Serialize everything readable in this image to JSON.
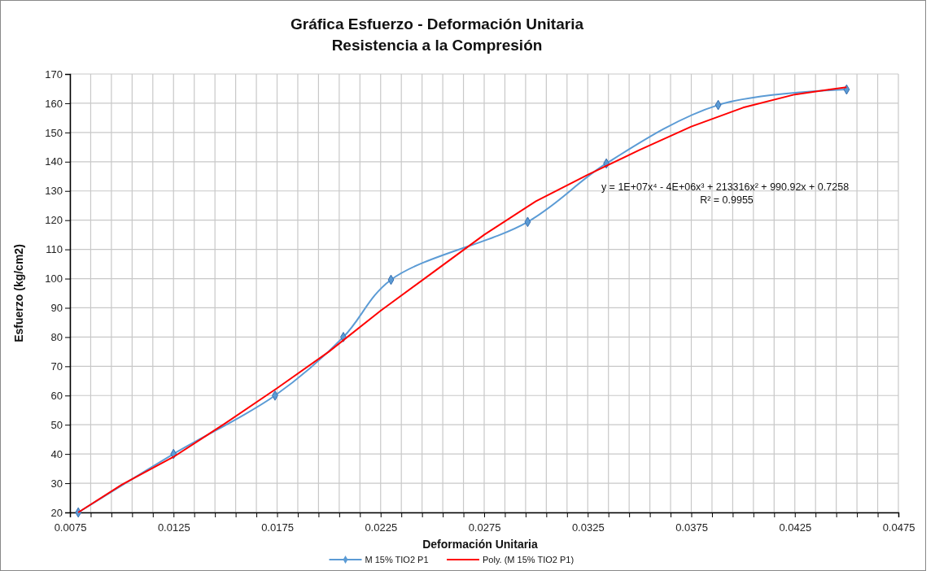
{
  "chart_data": {
    "type": "line",
    "title": "Gráfica Esfuerzo - Deformación Unitaria",
    "subtitle": "Resistencia a la Compresión",
    "xlabel": "Deformación Unitaria",
    "ylabel": "Esfuerzo (kg/cm2)",
    "annotations": [
      "y = 1E+07x⁴ - 4E+06x³ + 213316x² + 990.92x + 0.7258",
      "R² = 0.9955"
    ],
    "xlim": [
      0.0075,
      0.0475
    ],
    "ylim": [
      20,
      170
    ],
    "xticks": [
      {
        "value": 0.0075,
        "label": "0.0075"
      },
      {
        "value": 0.0085,
        "label": null
      },
      {
        "value": 0.0095,
        "label": null
      },
      {
        "value": 0.0105,
        "label": null
      },
      {
        "value": 0.0115,
        "label": null
      },
      {
        "value": 0.0125,
        "label": "0.0125"
      },
      {
        "value": 0.0135,
        "label": null
      },
      {
        "value": 0.0145,
        "label": null
      },
      {
        "value": 0.0155,
        "label": null
      },
      {
        "value": 0.0165,
        "label": null
      },
      {
        "value": 0.0175,
        "label": "0.0175"
      },
      {
        "value": 0.0185,
        "label": null
      },
      {
        "value": 0.0195,
        "label": null
      },
      {
        "value": 0.0205,
        "label": null
      },
      {
        "value": 0.0215,
        "label": null
      },
      {
        "value": 0.0225,
        "label": "0.0225"
      },
      {
        "value": 0.0235,
        "label": null
      },
      {
        "value": 0.0245,
        "label": null
      },
      {
        "value": 0.0255,
        "label": null
      },
      {
        "value": 0.0265,
        "label": null
      },
      {
        "value": 0.0275,
        "label": "0.0275"
      },
      {
        "value": 0.0285,
        "label": null
      },
      {
        "value": 0.0295,
        "label": null
      },
      {
        "value": 0.0305,
        "label": null
      },
      {
        "value": 0.0315,
        "label": null
      },
      {
        "value": 0.0325,
        "label": "0.0325"
      },
      {
        "value": 0.0335,
        "label": null
      },
      {
        "value": 0.0345,
        "label": null
      },
      {
        "value": 0.0355,
        "label": null
      },
      {
        "value": 0.0365,
        "label": null
      },
      {
        "value": 0.0375,
        "label": "0.0375"
      },
      {
        "value": 0.0385,
        "label": null
      },
      {
        "value": 0.0395,
        "label": null
      },
      {
        "value": 0.0405,
        "label": null
      },
      {
        "value": 0.0415,
        "label": null
      },
      {
        "value": 0.0425,
        "label": "0.0425"
      },
      {
        "value": 0.0435,
        "label": null
      },
      {
        "value": 0.0445,
        "label": null
      },
      {
        "value": 0.0455,
        "label": null
      },
      {
        "value": 0.0465,
        "label": null
      },
      {
        "value": 0.0475,
        "label": "0.0475"
      }
    ],
    "yticks": [
      20,
      30,
      40,
      50,
      60,
      70,
      80,
      90,
      100,
      110,
      120,
      130,
      140,
      150,
      160,
      170
    ],
    "grid": true,
    "legend": "bottom",
    "series": [
      {
        "name": "M 15% TIO2 P1",
        "color": "#5b9bd5",
        "marker": "diamond",
        "x": [
          0.0079,
          0.0125,
          0.0174,
          0.0207,
          0.023,
          0.0296,
          0.0334,
          0.0388,
          0.045
        ],
        "values": [
          20,
          40,
          60,
          80,
          99.6,
          119.4,
          139.4,
          159.4,
          164.7
        ]
      },
      {
        "name": "Poly. (M 15% TIO2 P1)",
        "color": "#ff0000",
        "marker": "none",
        "x": [
          0.0079,
          0.01,
          0.0125,
          0.015,
          0.0175,
          0.02,
          0.0225,
          0.025,
          0.0275,
          0.03,
          0.0325,
          0.035,
          0.0375,
          0.04,
          0.0425,
          0.045
        ],
        "values": [
          20,
          29.5,
          39,
          50.5,
          62.5,
          75,
          89,
          102,
          115,
          126.5,
          135.5,
          144,
          152,
          158.5,
          163,
          165.5
        ]
      }
    ]
  }
}
